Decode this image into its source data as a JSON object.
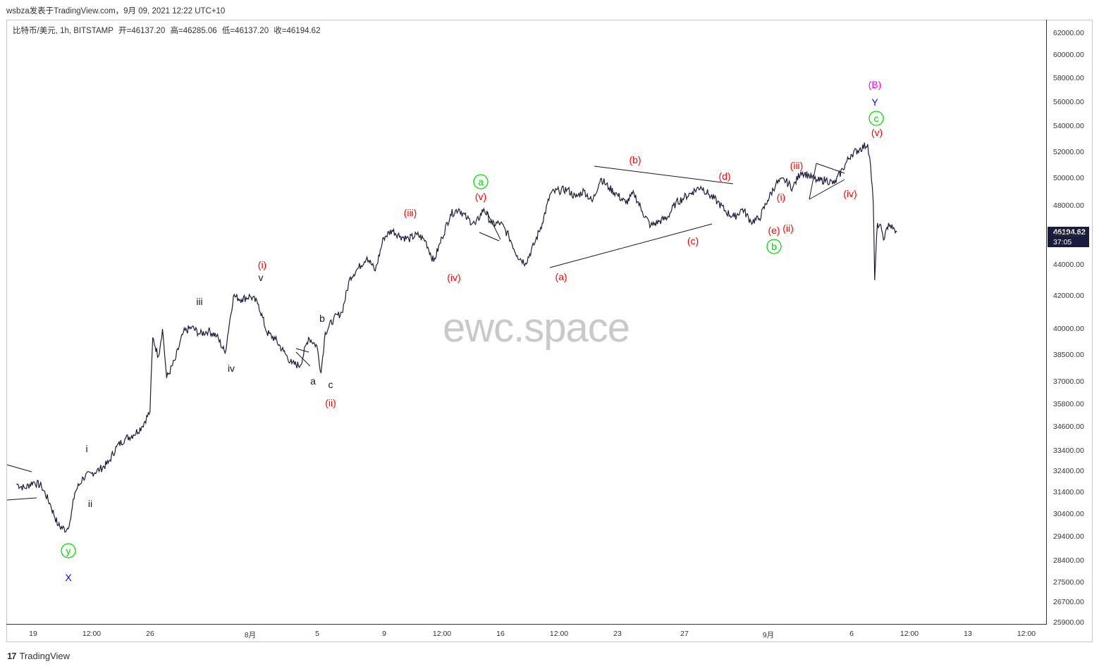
{
  "header": {
    "publish_line": "wsbza发表于TradingView.com，9月 09, 2021 12:22 UTC+10"
  },
  "symbol": {
    "name": "比特币/美元, 1h, BITSTAMP",
    "open": "开=46137.20",
    "high": "高=46285.06",
    "low": "低=46137.20",
    "close": "收=46194.62"
  },
  "price_badge": {
    "price": "46194.62",
    "countdown": "37:05"
  },
  "watermark": "ewc.space",
  "footer": {
    "brand": "TradingView",
    "logo_glyph": "17"
  },
  "colors": {
    "price_line": "#1b1b3d",
    "wave_red": "#ff0000",
    "wave_green": "#00dd00",
    "wave_blue": "#0000ff",
    "wave_magenta": "#ff00ff",
    "wave_black": "#131722"
  },
  "chart_data": {
    "type": "line",
    "title": "",
    "symbol": "BTC/USD 1h BITSTAMP",
    "yticks": [
      "62000.00",
      "60000.00",
      "58000.00",
      "56000.00",
      "54000.00",
      "52000.00",
      "50000.00",
      "48000.00",
      "46000.00",
      "44000.00",
      "42000.00",
      "40000.00",
      "38500.00",
      "37000.00",
      "35800.00",
      "34600.00",
      "33400.00",
      "32400.00",
      "31400.00",
      "30400.00",
      "29400.00",
      "28400.00",
      "27500.00",
      "26700.00",
      "25900.00"
    ],
    "log_scale": true,
    "xticks": [
      "19",
      "12:00",
      "26",
      "8月",
      "5",
      "9",
      "12:00",
      "16",
      "12:00",
      "23",
      "27",
      "9月",
      "6",
      "12:00",
      "13",
      "12:00"
    ],
    "price_series": [
      [
        "07-18 00:00",
        31800
      ],
      [
        "07-18 12:00",
        31600
      ],
      [
        "07-19 00:00",
        31900
      ],
      [
        "07-19 12:00",
        31700
      ],
      [
        "07-20 00:00",
        30900
      ],
      [
        "07-20 12:00",
        29900
      ],
      [
        "07-21 00:00",
        29700
      ],
      [
        "07-21 06:00",
        30200
      ],
      [
        "07-21 12:00",
        31400
      ],
      [
        "07-22 00:00",
        32100
      ],
      [
        "07-22 12:00",
        32300
      ],
      [
        "07-23 00:00",
        32500
      ],
      [
        "07-23 12:00",
        32800
      ],
      [
        "07-24 00:00",
        33600
      ],
      [
        "07-24 12:00",
        34000
      ],
      [
        "07-25 00:00",
        34200
      ],
      [
        "07-25 12:00",
        34600
      ],
      [
        "07-26 00:00",
        35400
      ],
      [
        "07-26 04:00",
        39500
      ],
      [
        "07-26 12:00",
        38400
      ],
      [
        "07-26 18:00",
        40000
      ],
      [
        "07-27 00:00",
        37200
      ],
      [
        "07-27 12:00",
        38200
      ],
      [
        "07-28 00:00",
        39800
      ],
      [
        "07-28 12:00",
        40100
      ],
      [
        "07-29 00:00",
        39700
      ],
      [
        "07-29 12:00",
        39900
      ],
      [
        "07-30 00:00",
        39600
      ],
      [
        "07-30 12:00",
        38600
      ],
      [
        "07-31 00:00",
        42000
      ],
      [
        "07-31 12:00",
        41800
      ],
      [
        "08-01 00:00",
        42000
      ],
      [
        "08-01 12:00",
        41500
      ],
      [
        "08-02 00:00",
        39800
      ],
      [
        "08-02 12:00",
        39400
      ],
      [
        "08-03 00:00",
        38700
      ],
      [
        "08-03 12:00",
        38000
      ],
      [
        "08-04 00:00",
        37900
      ],
      [
        "08-04 12:00",
        39500
      ],
      [
        "08-05 00:00",
        39000
      ],
      [
        "08-05 06:00",
        37500
      ],
      [
        "08-05 12:00",
        39800
      ],
      [
        "08-06 00:00",
        40600
      ],
      [
        "08-06 12:00",
        41000
      ],
      [
        "08-07 00:00",
        43200
      ],
      [
        "08-07 12:00",
        43800
      ],
      [
        "08-08 00:00",
        44500
      ],
      [
        "08-08 12:00",
        43600
      ],
      [
        "08-09 00:00",
        45800
      ],
      [
        "08-09 12:00",
        46300
      ],
      [
        "08-10 00:00",
        45900
      ],
      [
        "08-10 12:00",
        45700
      ],
      [
        "08-11 00:00",
        46000
      ],
      [
        "08-11 12:00",
        45600
      ],
      [
        "08-12 00:00",
        44200
      ],
      [
        "08-12 12:00",
        45800
      ],
      [
        "08-13 00:00",
        47400
      ],
      [
        "08-13 12:00",
        47800
      ],
      [
        "08-14 00:00",
        47100
      ],
      [
        "08-14 12:00",
        46700
      ],
      [
        "08-15 00:00",
        47800
      ],
      [
        "08-15 12:00",
        46700
      ],
      [
        "08-16 00:00",
        46800
      ],
      [
        "08-16 12:00",
        45900
      ],
      [
        "08-17 00:00",
        44600
      ],
      [
        "08-17 12:00",
        44100
      ],
      [
        "08-18 00:00",
        45300
      ],
      [
        "08-18 12:00",
        46800
      ],
      [
        "08-19 00:00",
        48900
      ],
      [
        "08-19 12:00",
        49100
      ],
      [
        "08-20 00:00",
        49200
      ],
      [
        "08-20 12:00",
        48600
      ],
      [
        "08-21 00:00",
        49100
      ],
      [
        "08-21 12:00",
        48300
      ],
      [
        "08-22 00:00",
        50000
      ],
      [
        "08-22 12:00",
        49300
      ],
      [
        "08-23 00:00",
        48800
      ],
      [
        "08-23 12:00",
        48200
      ],
      [
        "08-24 00:00",
        48900
      ],
      [
        "08-24 12:00",
        47600
      ],
      [
        "08-25 00:00",
        46600
      ],
      [
        "08-25 12:00",
        46900
      ],
      [
        "08-26 00:00",
        47200
      ],
      [
        "08-26 12:00",
        48200
      ],
      [
        "08-27 00:00",
        48600
      ],
      [
        "08-27 12:00",
        49000
      ],
      [
        "08-28 00:00",
        49400
      ],
      [
        "08-28 12:00",
        48800
      ],
      [
        "08-29 00:00",
        48300
      ],
      [
        "08-29 12:00",
        47600
      ],
      [
        "08-30 00:00",
        47200
      ],
      [
        "08-30 12:00",
        47800
      ],
      [
        "08-31 00:00",
        46900
      ],
      [
        "08-31 12:00",
        47100
      ],
      [
        "09-01 00:00",
        48400
      ],
      [
        "09-01 12:00",
        49600
      ],
      [
        "09-02 00:00",
        49900
      ],
      [
        "09-02 12:00",
        49300
      ],
      [
        "09-03 00:00",
        50500
      ],
      [
        "09-03 12:00",
        50200
      ],
      [
        "09-04 00:00",
        49800
      ],
      [
        "09-04 12:00",
        49900
      ],
      [
        "09-05 00:00",
        49600
      ],
      [
        "09-05 12:00",
        50700
      ],
      [
        "09-06 00:00",
        51800
      ],
      [
        "09-06 12:00",
        52200
      ],
      [
        "09-07 00:00",
        52600
      ],
      [
        "09-07 04:00",
        51000
      ],
      [
        "09-07 08:00",
        48200
      ],
      [
        "09-07 10:00",
        43000
      ],
      [
        "09-07 14:00",
        46800
      ],
      [
        "09-07 20:00",
        46300
      ],
      [
        "09-08 00:00",
        45700
      ],
      [
        "09-08 06:00",
        46800
      ],
      [
        "09-08 12:00",
        46400
      ],
      [
        "09-08 18:00",
        46194.62
      ]
    ]
  },
  "wave_labels": [
    {
      "text": "y",
      "circled": true,
      "color": "green",
      "at": "07-20 18:00",
      "price": 29700
    },
    {
      "text": "X",
      "color": "blue",
      "at": "07-20 18:00",
      "price": 29700
    },
    {
      "text": "i",
      "color": "black",
      "at": "07-21 18:00",
      "price": 32100
    },
    {
      "text": "ii",
      "color": "black",
      "at": "07-22 06:00",
      "price": 31600
    },
    {
      "text": "iii",
      "color": "black",
      "at": "07-28 06:00",
      "price": 40500
    },
    {
      "text": "iv",
      "color": "black",
      "at": "07-30 12:00",
      "price": 38600
    },
    {
      "text": "v",
      "color": "black",
      "at": "07-31 18:00",
      "price": 42000
    },
    {
      "text": "(i)",
      "color": "red",
      "at": "07-31 18:00",
      "price": 42000
    },
    {
      "text": "a",
      "color": "black",
      "at": "08-03 18:00",
      "price": 37900
    },
    {
      "text": "b",
      "color": "black",
      "at": "08-04 12:00",
      "price": 39900
    },
    {
      "text": "c",
      "color": "black",
      "at": "08-05 06:00",
      "price": 37300
    },
    {
      "text": "(ii)",
      "color": "red",
      "at": "08-05 06:00",
      "price": 37300
    },
    {
      "text": "(iii)",
      "color": "red",
      "at": "08-10 12:00",
      "price": 46700
    },
    {
      "text": "(iv)",
      "color": "red",
      "at": "08-12 06:00",
      "price": 44200
    },
    {
      "text": "(v)",
      "color": "red",
      "at": "08-13 18:00",
      "price": 47800
    },
    {
      "text": "a",
      "circled": true,
      "color": "green",
      "at": "08-13 18:00",
      "price": 47800
    },
    {
      "text": "(a)",
      "color": "red",
      "at": "08-17 18:00",
      "price": 44100
    },
    {
      "text": "(b)",
      "color": "red",
      "at": "08-22 12:00",
      "price": 50300
    },
    {
      "text": "(c)",
      "color": "red",
      "at": "08-26 12:00",
      "price": 46500
    },
    {
      "text": "(d)",
      "color": "red",
      "at": "08-29 06:00",
      "price": 49300
    },
    {
      "text": "(e)",
      "color": "red",
      "at": "08-31 06:00",
      "price": 46800
    },
    {
      "text": "b",
      "circled": true,
      "color": "green",
      "at": "08-31 06:00",
      "price": 46800
    },
    {
      "text": "(i)",
      "color": "red",
      "at": "09-01 00:00",
      "price": 48000
    },
    {
      "text": "(ii)",
      "color": "red",
      "at": "09-01 00:00",
      "price": 46900
    },
    {
      "text": "(iii)",
      "color": "red",
      "at": "09-02 06:00",
      "price": 50200
    },
    {
      "text": "(iv)",
      "color": "red",
      "at": "09-05 12:00",
      "price": 49500
    },
    {
      "text": "(v)",
      "color": "red",
      "at": "09-07 00:00",
      "price": 52700
    },
    {
      "text": "c",
      "circled": true,
      "color": "green",
      "at": "09-07 00:00",
      "price": 52700
    },
    {
      "text": "Y",
      "color": "blue",
      "at": "09-07 00:00",
      "price": 52700
    },
    {
      "text": "(B)",
      "color": "magenta",
      "at": "09-07 00:00",
      "price": 52700
    }
  ]
}
